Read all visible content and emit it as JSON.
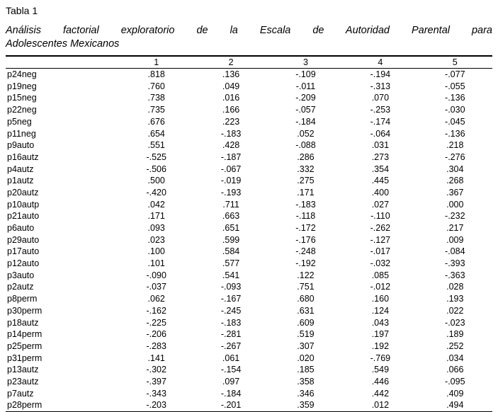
{
  "page": {
    "title": "Tabla 1",
    "caption_line_1": "Análisis factorial exploratorio de la Escala de Autoridad Parental para",
    "caption_line_2": "Adolescentes Mexicanos"
  },
  "chart_data": {
    "type": "table",
    "title": "Tabla 1",
    "caption": "Análisis factorial exploratorio de la Escala de Autoridad Parental para Adolescentes Mexicanos",
    "columns": [
      "",
      "1",
      "2",
      "3",
      "4",
      "5"
    ],
    "rows": [
      {
        "label": "p24neg",
        "values": [
          ".818",
          ".136",
          "-.109",
          "-.194",
          "-.077"
        ]
      },
      {
        "label": "p19neg",
        "values": [
          ".760",
          ".049",
          "-.011",
          "-.313",
          "-.055"
        ]
      },
      {
        "label": "p15neg",
        "values": [
          ".738",
          ".016",
          "-.209",
          ".070",
          "-.136"
        ]
      },
      {
        "label": "p22neg",
        "values": [
          ".735",
          ".166",
          "-.057",
          "-.253",
          "-.030"
        ]
      },
      {
        "label": "p5neg",
        "values": [
          ".676",
          ".223",
          "-.184",
          "-.174",
          "-.045"
        ]
      },
      {
        "label": "p11neg",
        "values": [
          ".654",
          "-.183",
          ".052",
          "-.064",
          "-.136"
        ]
      },
      {
        "label": "p9auto",
        "values": [
          ".551",
          ".428",
          "-.088",
          ".031",
          ".218"
        ]
      },
      {
        "label": "p16autz",
        "values": [
          "-.525",
          "-.187",
          ".286",
          ".273",
          "-.276"
        ]
      },
      {
        "label": "p4autz",
        "values": [
          "-.506",
          "-.067",
          ".332",
          ".354",
          ".304"
        ]
      },
      {
        "label": "p1autz",
        "values": [
          ".500",
          "-.019",
          ".275",
          ".445",
          ".268"
        ]
      },
      {
        "label": "p20autz",
        "values": [
          "-.420",
          "-.193",
          ".171",
          ".400",
          ".367"
        ]
      },
      {
        "label": "p10autp",
        "values": [
          ".042",
          ".711",
          "-.183",
          ".027",
          ".000"
        ]
      },
      {
        "label": "p21auto",
        "values": [
          ".171",
          ".663",
          "-.118",
          "-.110",
          "-.232"
        ]
      },
      {
        "label": "p6auto",
        "values": [
          ".093",
          ".651",
          "-.172",
          "-.262",
          ".217"
        ]
      },
      {
        "label": "p29auto",
        "values": [
          ".023",
          ".599",
          "-.176",
          "-.127",
          ".009"
        ]
      },
      {
        "label": "p17auto",
        "values": [
          ".100",
          ".584",
          "-.248",
          "-.017",
          "-.084"
        ]
      },
      {
        "label": "p12auto",
        "values": [
          ".101",
          ".577",
          "-.192",
          "-.032",
          "-.393"
        ]
      },
      {
        "label": "p3auto",
        "values": [
          "-.090",
          ".541",
          ".122",
          ".085",
          "-.363"
        ]
      },
      {
        "label": "p2autz",
        "values": [
          "-.037",
          "-.093",
          ".751",
          "-.012",
          ".028"
        ]
      },
      {
        "label": "p8perm",
        "values": [
          ".062",
          "-.167",
          ".680",
          ".160",
          ".193"
        ]
      },
      {
        "label": "p30perm",
        "values": [
          "-.162",
          "-.245",
          ".631",
          ".124",
          ".022"
        ]
      },
      {
        "label": "p18autz",
        "values": [
          "-.225",
          "-.183",
          ".609",
          ".043",
          "-.023"
        ]
      },
      {
        "label": "p14perm",
        "values": [
          "-.206",
          "-.281",
          ".519",
          ".197",
          ".189"
        ]
      },
      {
        "label": "p25perm",
        "values": [
          "-.283",
          "-.267",
          ".307",
          ".192",
          ".252"
        ]
      },
      {
        "label": "p31perm",
        "values": [
          ".141",
          ".061",
          ".020",
          "-.769",
          ".034"
        ]
      },
      {
        "label": "p13autz",
        "values": [
          "-.302",
          "-.154",
          ".185",
          ".549",
          ".066"
        ]
      },
      {
        "label": "p23autz",
        "values": [
          "-.397",
          ".097",
          ".358",
          ".446",
          "-.095"
        ]
      },
      {
        "label": "p7autz",
        "values": [
          "-.343",
          "-.184",
          ".346",
          ".442",
          ".409"
        ]
      },
      {
        "label": "p28perm",
        "values": [
          "-.203",
          "-.201",
          ".359",
          ".012",
          ".494"
        ]
      }
    ]
  }
}
